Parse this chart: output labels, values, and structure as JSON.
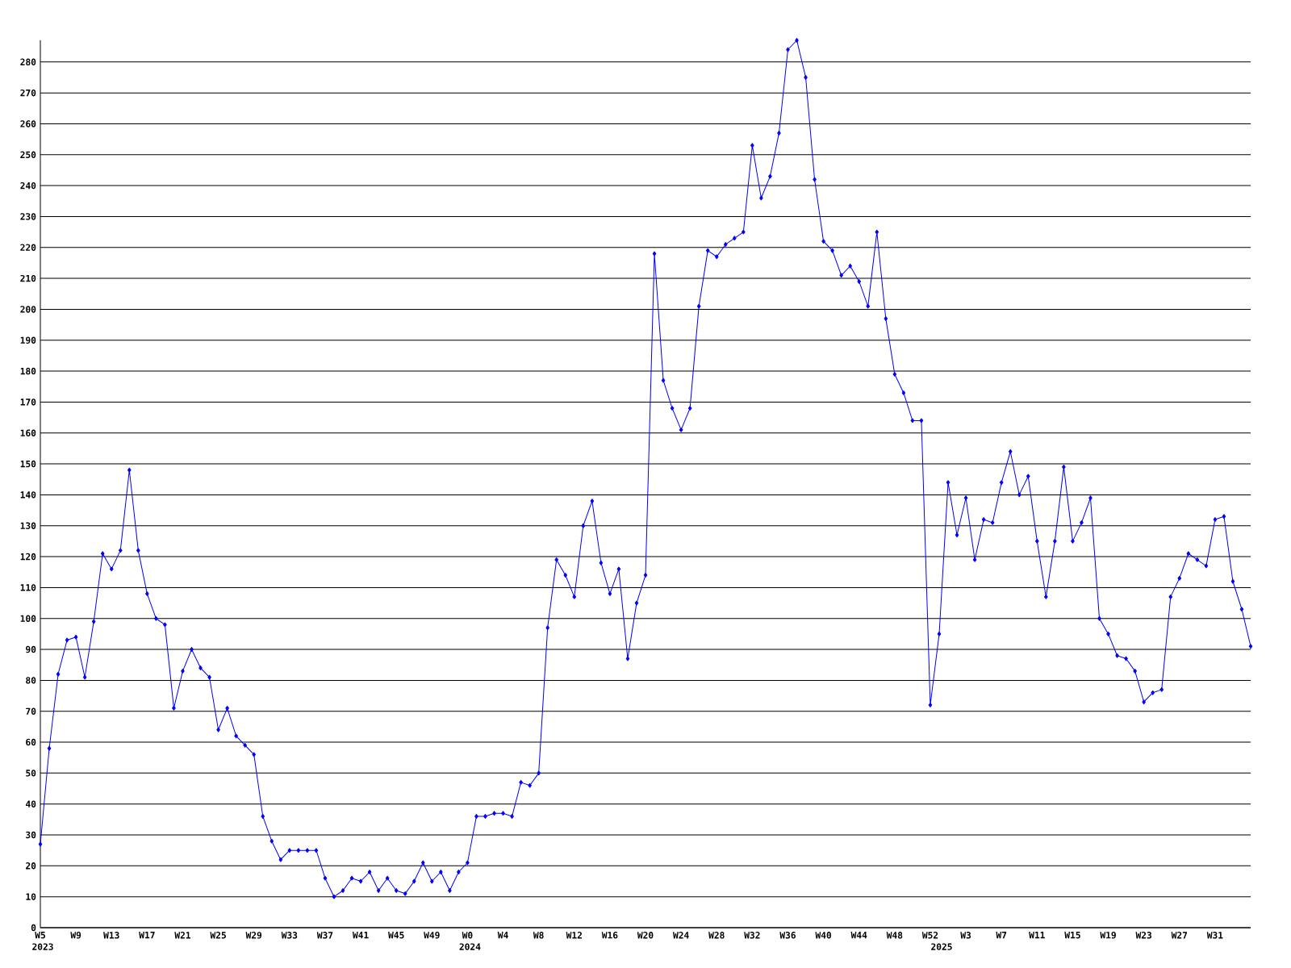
{
  "chart_data": {
    "type": "line",
    "color": "#0000ff",
    "marker": "diamond",
    "grid": "y",
    "categories": [
      "W5",
      null,
      null,
      null,
      "W9",
      null,
      null,
      null,
      "W13",
      null,
      null,
      null,
      "W17",
      null,
      null,
      null,
      "W21",
      null,
      null,
      null,
      "W25",
      null,
      null,
      null,
      "W29",
      null,
      null,
      null,
      "W33",
      null,
      null,
      null,
      "W37",
      null,
      null,
      null,
      "W41",
      null,
      null,
      null,
      "W45",
      null,
      null,
      null,
      "W49",
      null,
      null,
      null,
      "W0",
      null,
      null,
      null,
      "W4",
      null,
      null,
      null,
      "W8",
      null,
      null,
      null,
      "W12",
      null,
      null,
      null,
      "W16",
      null,
      null,
      null,
      "W20",
      null,
      null,
      null,
      "W24",
      null,
      null,
      null,
      "W28",
      null,
      null,
      null,
      "W32",
      null,
      null,
      null,
      "W36",
      null,
      null,
      null,
      "W40",
      null,
      null,
      null,
      "W44",
      null,
      null,
      null,
      "W48",
      null,
      null,
      null,
      "W52",
      null,
      null,
      null,
      "W3",
      null,
      null,
      null,
      "W7",
      null,
      null,
      null,
      "W11",
      null,
      null,
      null,
      "W15",
      null,
      null,
      null,
      "W19",
      null,
      null,
      null,
      "W23",
      null,
      null,
      null,
      "W27",
      null,
      null,
      null,
      "W31",
      null,
      null,
      null,
      null
    ],
    "values": [
      27,
      58,
      82,
      93,
      94,
      81,
      99,
      121,
      116,
      122,
      148,
      122,
      108,
      100,
      98,
      71,
      83,
      90,
      84,
      81,
      64,
      71,
      62,
      59,
      56,
      36,
      28,
      22,
      25,
      25,
      25,
      25,
      16,
      10,
      12,
      16,
      15,
      18,
      12,
      16,
      12,
      11,
      15,
      21,
      15,
      18,
      12,
      18,
      21,
      36,
      36,
      37,
      37,
      36,
      47,
      46,
      50,
      97,
      119,
      114,
      107,
      130,
      138,
      118,
      108,
      116,
      87,
      105,
      114,
      218,
      177,
      168,
      161,
      168,
      201,
      219,
      217,
      221,
      223,
      225,
      253,
      236,
      243,
      257,
      284,
      287,
      275,
      242,
      222,
      219,
      211,
      214,
      209,
      201,
      225,
      197,
      179,
      173,
      164,
      164,
      72,
      95,
      144,
      127,
      139,
      119,
      132,
      131,
      144,
      154,
      140,
      146,
      125,
      107,
      125,
      149,
      125,
      131,
      139,
      100,
      95,
      88,
      87,
      83,
      73,
      76,
      77,
      107,
      113,
      121,
      119,
      117,
      132,
      133,
      112,
      103,
      91
    ],
    "ylim": [
      0,
      287
    ],
    "yticks": [
      0,
      10,
      20,
      30,
      40,
      50,
      60,
      70,
      80,
      90,
      100,
      110,
      120,
      130,
      140,
      150,
      160,
      170,
      180,
      190,
      200,
      210,
      220,
      230,
      240,
      250,
      260,
      270,
      280
    ],
    "annotations": [
      "2023",
      "2024",
      "2025"
    ]
  }
}
